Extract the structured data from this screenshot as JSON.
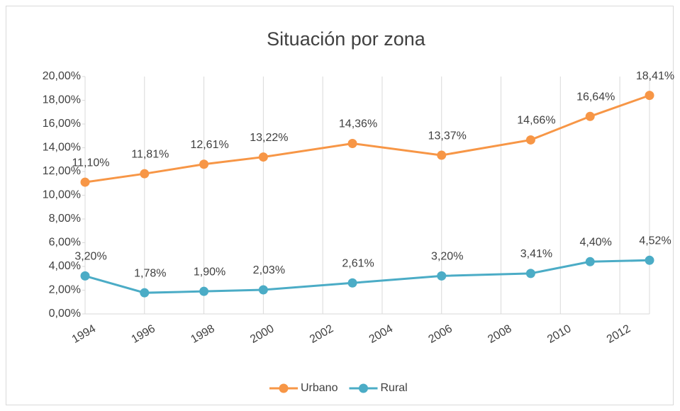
{
  "chart_data": {
    "type": "line",
    "title": "Situación por zona",
    "x": [
      1994,
      1996,
      1998,
      2000,
      2003,
      2006,
      2009,
      2011,
      2013
    ],
    "series": [
      {
        "name": "Urbano",
        "color": "#F79646",
        "values": [
          11.1,
          11.81,
          12.61,
          13.22,
          14.36,
          13.37,
          14.66,
          16.64,
          18.41
        ],
        "value_labels": [
          "11,10%",
          "11,81%",
          "12,61%",
          "13,22%",
          "14,36%",
          "13,37%",
          "14,66%",
          "16,64%",
          "18,41%"
        ]
      },
      {
        "name": "Rural",
        "color": "#4BACC6",
        "values": [
          3.2,
          1.78,
          1.9,
          2.03,
          2.61,
          3.2,
          3.41,
          4.4,
          4.52
        ],
        "value_labels": [
          "3,20%",
          "1,78%",
          "1,90%",
          "2,03%",
          "2,61%",
          "3,20%",
          "3,41%",
          "4,40%",
          "4,52%"
        ]
      }
    ],
    "xlim": [
      1994,
      2013
    ],
    "xticks": [
      1994,
      1996,
      1998,
      2000,
      2002,
      2004,
      2006,
      2008,
      2010,
      2012
    ],
    "ylim": [
      0,
      20
    ],
    "yticks": [
      {
        "value": 0,
        "label": "0,00%"
      },
      {
        "value": 2,
        "label": "2,00%"
      },
      {
        "value": 4,
        "label": "4,00%"
      },
      {
        "value": 6,
        "label": "6,00%"
      },
      {
        "value": 8,
        "label": "8,00%"
      },
      {
        "value": 10,
        "label": "10,00%"
      },
      {
        "value": 12,
        "label": "12,00%"
      },
      {
        "value": 14,
        "label": "14,00%"
      },
      {
        "value": 16,
        "label": "16,00%"
      },
      {
        "value": 18,
        "label": "18,00%"
      },
      {
        "value": 20,
        "label": "20,00%"
      }
    ],
    "xgrid": true,
    "ygrid": false,
    "legend": "bottom"
  }
}
